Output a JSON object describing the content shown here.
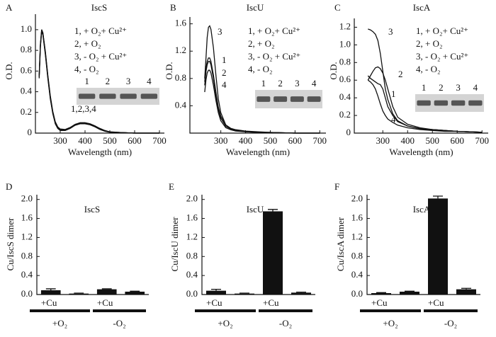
{
  "chart_data": [
    {
      "type": "line",
      "panel_label": "A",
      "title": "IscS",
      "xlabel": "Wavelength (nm)",
      "ylabel": "O.D.",
      "x": [
        215,
        220,
        225,
        230,
        240,
        250,
        260,
        270,
        280,
        290,
        300,
        320,
        340,
        360,
        380,
        400,
        420,
        440,
        460,
        480,
        500,
        550,
        600,
        700
      ],
      "series": [
        {
          "color": "#111",
          "values": [
            0.55,
            0.85,
            1.0,
            0.97,
            0.78,
            0.55,
            0.35,
            0.2,
            0.1,
            0.05,
            0.03,
            0.03,
            0.05,
            0.08,
            0.1,
            0.1,
            0.09,
            0.07,
            0.04,
            0.02,
            0.01,
            0.005,
            0,
            0
          ]
        },
        {
          "color": "#111",
          "values": [
            0.54,
            0.84,
            0.99,
            0.96,
            0.77,
            0.54,
            0.34,
            0.19,
            0.1,
            0.05,
            0.03,
            0.03,
            0.05,
            0.08,
            0.095,
            0.095,
            0.085,
            0.065,
            0.04,
            0.02,
            0.01,
            0.005,
            0,
            0
          ]
        },
        {
          "color": "#111",
          "values": [
            0.56,
            0.86,
            1.0,
            0.97,
            0.79,
            0.56,
            0.36,
            0.21,
            0.11,
            0.06,
            0.04,
            0.035,
            0.055,
            0.085,
            0.1,
            0.1,
            0.09,
            0.07,
            0.045,
            0.025,
            0.012,
            0.005,
            0,
            0
          ]
        },
        {
          "color": "#111",
          "values": [
            0.53,
            0.83,
            0.98,
            0.95,
            0.76,
            0.53,
            0.33,
            0.19,
            0.09,
            0.045,
            0.025,
            0.025,
            0.045,
            0.075,
            0.09,
            0.09,
            0.08,
            0.06,
            0.035,
            0.018,
            0.008,
            0.004,
            0,
            0
          ]
        }
      ],
      "curve_label": "1,2,3,4",
      "legend_text": [
        "1, + O₂+  Cu²⁺",
        "2, + O₂",
        "3, - O₂ + Cu²⁺",
        "4, - O₂"
      ],
      "inset_lanes": [
        "1",
        "2",
        "3",
        "4"
      ],
      "xlim": [
        200,
        720
      ],
      "ylim": [
        0,
        1.15
      ],
      "xticks": [
        300,
        400,
        500,
        600,
        700
      ],
      "yticks": [
        0,
        0.2,
        0.4,
        0.6,
        0.8,
        {
          "value": 1,
          "label": "1.0"
        }
      ]
    },
    {
      "type": "line",
      "panel_label": "B",
      "title": "IscU",
      "xlabel": "Wavelength (nm)",
      "ylabel": "O.D.",
      "x": [
        235,
        240,
        245,
        250,
        255,
        260,
        270,
        280,
        290,
        300,
        320,
        340,
        360,
        400,
        450,
        500,
        600,
        700
      ],
      "series": [
        {
          "name": "1",
          "color": "#111",
          "values": [
            0.75,
            0.95,
            1.05,
            1.1,
            1.1,
            1.05,
            0.85,
            0.6,
            0.38,
            0.25,
            0.12,
            0.07,
            0.05,
            0.03,
            0.02,
            0.01,
            0,
            0
          ]
        },
        {
          "name": "2",
          "color": "#111",
          "values": [
            0.7,
            0.9,
            1.0,
            1.05,
            1.05,
            1.0,
            0.8,
            0.55,
            0.35,
            0.22,
            0.1,
            0.06,
            0.04,
            0.02,
            0.01,
            0.01,
            0,
            0
          ]
        },
        {
          "name": "3",
          "color": "#111",
          "values": [
            0.8,
            1.1,
            1.4,
            1.55,
            1.57,
            1.52,
            1.25,
            0.85,
            0.5,
            0.3,
            0.12,
            0.06,
            0.04,
            0.02,
            0.01,
            0.01,
            0,
            0
          ]
        },
        {
          "name": "4",
          "color": "#111",
          "values": [
            0.6,
            0.78,
            0.88,
            0.92,
            0.92,
            0.88,
            0.7,
            0.48,
            0.3,
            0.18,
            0.08,
            0.05,
            0.03,
            0.02,
            0.01,
            0.005,
            0,
            0
          ]
        }
      ],
      "legend_text": [
        "1, + O₂+  Cu²⁺",
        "2, + O₂",
        "3, - O₂ + Cu²⁺",
        "4, - O₂"
      ],
      "inset_lanes": [
        "1",
        "2",
        "3",
        "4"
      ],
      "xlim": [
        175,
        725
      ],
      "ylim": [
        0,
        1.7
      ],
      "xticks": [
        300,
        400,
        500,
        600,
        700
      ],
      "yticks": [
        0.4,
        0.8,
        1.2,
        1.6
      ]
    },
    {
      "type": "line",
      "panel_label": "C",
      "title": "IscA",
      "xlabel": "Wavelength (nm)",
      "ylabel": "O.D.",
      "x": [
        240,
        250,
        260,
        270,
        280,
        290,
        300,
        310,
        320,
        340,
        360,
        400,
        450,
        500,
        550,
        600,
        700
      ],
      "series": [
        {
          "name": "1",
          "color": "#111",
          "values": [
            0.65,
            0.62,
            0.6,
            0.58,
            0.56,
            0.55,
            0.5,
            0.4,
            0.3,
            0.2,
            0.13,
            0.08,
            0.05,
            0.04,
            0.03,
            0.02,
            0.01
          ]
        },
        {
          "name": "2",
          "color": "#111",
          "values": [
            0.6,
            0.65,
            0.7,
            0.74,
            0.75,
            0.73,
            0.68,
            0.6,
            0.5,
            0.3,
            0.18,
            0.1,
            0.06,
            0.04,
            0.03,
            0.02,
            0.01
          ]
        },
        {
          "name": "3",
          "color": "#111",
          "values": [
            1.18,
            1.17,
            1.15,
            1.12,
            1.05,
            0.9,
            0.7,
            0.5,
            0.38,
            0.22,
            0.14,
            0.08,
            0.05,
            0.04,
            0.03,
            0.02,
            0.01
          ]
        },
        {
          "name": "4",
          "color": "#111",
          "values": [
            0.6,
            0.58,
            0.55,
            0.5,
            0.42,
            0.33,
            0.25,
            0.2,
            0.16,
            0.12,
            0.09,
            0.06,
            0.04,
            0.03,
            0.02,
            0.02,
            0.01
          ]
        }
      ],
      "legend_text": [
        "1, + O₂+  Cu²⁺",
        "2, + O₂",
        "3, - O₂ + Cu²⁺",
        "4, - O₂"
      ],
      "inset_lanes": [
        "1",
        "2",
        "3",
        "4"
      ],
      "xlim": [
        185,
        725
      ],
      "ylim": [
        0,
        1.3
      ],
      "xticks": [
        300,
        400,
        500,
        600,
        700
      ],
      "yticks": [
        0,
        0.2,
        0.4,
        0.6,
        0.8,
        {
          "value": 1,
          "label": "1.0"
        },
        1.2
      ]
    },
    {
      "type": "bar",
      "panel_label": "D",
      "title": "IscS",
      "ylabel": "Cu/IscS dimer",
      "categories": [
        "+Cu",
        null,
        "+Cu",
        null
      ],
      "values": [
        0.09,
        0.02,
        0.11,
        0.06
      ],
      "errors": [
        0.03,
        0.01,
        0.01,
        0.01
      ],
      "color": "#111",
      "groups": [
        "+O₂",
        "-O₂"
      ],
      "ylim": [
        0,
        2.1
      ],
      "yticks": [
        {
          "value": 0,
          "label": "0.0"
        },
        0.4,
        0.8,
        1.2,
        1.6,
        {
          "value": 2,
          "label": "2.0"
        }
      ]
    },
    {
      "type": "bar",
      "panel_label": "E",
      "title": "IscU",
      "ylabel": "Cu/IscU dimer",
      "categories": [
        "+Cu",
        null,
        "+Cu",
        null
      ],
      "values": [
        0.08,
        0.02,
        1.75,
        0.04
      ],
      "errors": [
        0.03,
        0.01,
        0.04,
        0.01
      ],
      "color": "#111",
      "groups": [
        "+O₂",
        "-O₂"
      ],
      "ylim": [
        0,
        2.1
      ],
      "yticks": [
        {
          "value": 0,
          "label": "0.0"
        },
        0.4,
        0.8,
        1.2,
        1.6,
        {
          "value": 2,
          "label": "2.0"
        }
      ]
    },
    {
      "type": "bar",
      "panel_label": "F",
      "title": "IscA",
      "ylabel": "Cu/IscA dimer",
      "categories": [
        "+Cu",
        null,
        "+Cu",
        null
      ],
      "values": [
        0.03,
        0.06,
        2.02,
        0.11
      ],
      "errors": [
        0.01,
        0.01,
        0.05,
        0.02
      ],
      "color": "#111",
      "groups": [
        "+O₂",
        "-O₂"
      ],
      "ylim": [
        0,
        2.1
      ],
      "yticks": [
        {
          "value": 0,
          "label": "0.0"
        },
        0.4,
        0.8,
        1.2,
        1.6,
        {
          "value": 2,
          "label": "2.0"
        }
      ]
    }
  ]
}
